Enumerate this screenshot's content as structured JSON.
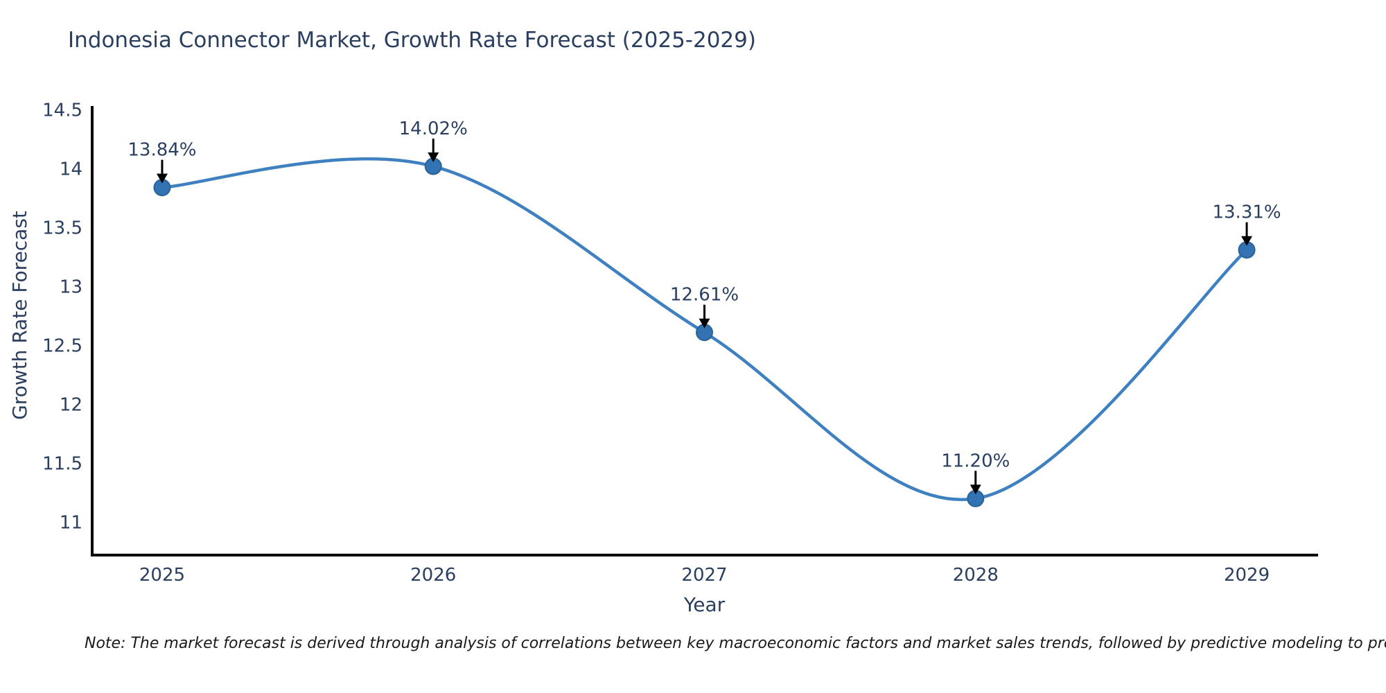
{
  "title": "Indonesia Connector Market, Growth Rate Forecast (2025-2029)",
  "note": "Note: The market forecast is derived through analysis of correlations between key macroeconomic factors and market sales trends, followed by predictive modeling to project future sal",
  "chart_data": {
    "type": "line",
    "title": "Indonesia Connector Market, Growth Rate Forecast (2025-2029)",
    "xlabel": "Year",
    "ylabel": "Growth Rate Forecast",
    "x": [
      2025,
      2026,
      2027,
      2028,
      2029
    ],
    "values": [
      13.84,
      14.02,
      12.61,
      11.2,
      13.31
    ],
    "point_labels": [
      "13.84%",
      "14.02%",
      "12.61%",
      "11.20%",
      "13.31%"
    ],
    "xtick_labels": [
      "2025",
      "2026",
      "2027",
      "2028",
      "2029"
    ],
    "ytick_values": [
      14.5,
      14,
      13.5,
      13,
      12.5,
      12,
      11.5,
      11
    ],
    "ytick_labels": [
      "14.5",
      "14",
      "13.5",
      "13",
      "12.5",
      "12",
      "11.5",
      "11"
    ],
    "xlim": [
      2024.742,
      2029.258
    ],
    "ylim": [
      10.72,
      14.52
    ],
    "line_shape": "spline",
    "grid": false,
    "legend": false,
    "colors": {
      "line": "#3e80c0",
      "marker_fill": "#3373b3",
      "marker_edge": "#2a6496",
      "axis": "#000000",
      "tick_text": "#2a3f5f",
      "annotation_text": "#2a3f5f",
      "annotation_arrow": "#000000"
    }
  }
}
